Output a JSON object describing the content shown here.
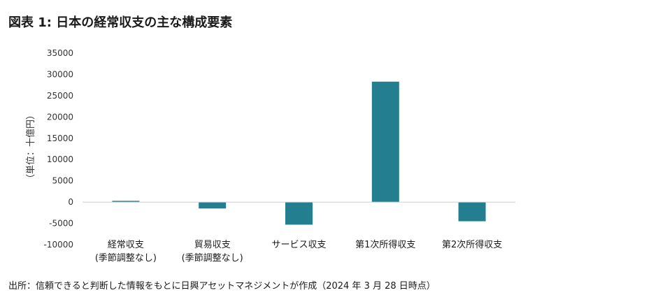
{
  "title": "図表 1: 日本の経常収支の主な構成要素",
  "source": "出所：信頼できると判断した情報をもとに日興アセットマネジメントが作成（2024 年 3 月 28 日時点）",
  "colors": {
    "bar": "#237e8f",
    "axis": "#cfcfcf"
  },
  "chart_data": {
    "type": "bar",
    "ylabel": "（単位：十億円）",
    "ylim": [
      -10000,
      35000
    ],
    "yticks": [
      "35000",
      "30000",
      "25000",
      "20000",
      "15000",
      "10000",
      "5000",
      "0",
      "-5000",
      "-10000"
    ],
    "ytick_values": [
      35000,
      30000,
      25000,
      20000,
      15000,
      10000,
      5000,
      0,
      -5000,
      -10000
    ],
    "categories": [
      [
        "経常収支",
        "(季節調整なし)"
      ],
      [
        "貿易収支",
        "(季節調整なし)"
      ],
      [
        "サービス収支"
      ],
      [
        "第1次所得収支"
      ],
      [
        "第2次所得収支"
      ]
    ],
    "values": [
      300,
      -1500,
      -5300,
      28300,
      -4500
    ],
    "grid": false,
    "legend": "none"
  }
}
